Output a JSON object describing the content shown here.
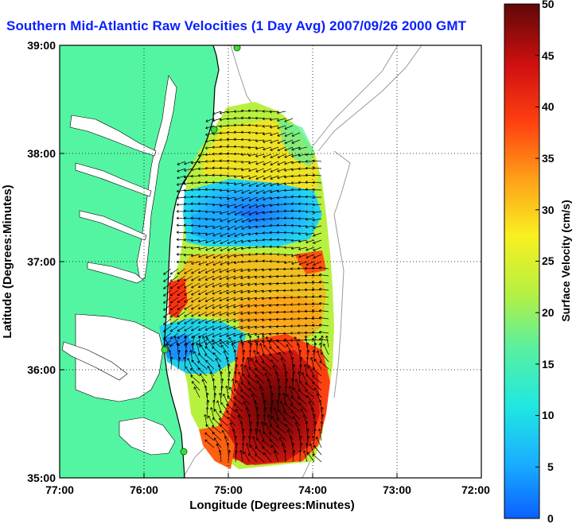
{
  "title": "Southern Mid-Atlantic Raw Velocities (1 Day Avg) 2007/09/26 2000 GMT",
  "map": {
    "xlabel": "Longitude (Degrees:Minutes)",
    "ylabel": "Latitude (Degrees:Minutes)",
    "x_ticks": [
      "77:00",
      "76:00",
      "75:00",
      "74:00",
      "73:00",
      "72:00"
    ],
    "y_ticks": [
      "39:00",
      "38:00",
      "37:00",
      "36:00",
      "35:00"
    ],
    "land_color": "#54f5a2",
    "water_color": "#ffffff"
  },
  "colorbar": {
    "label": "Surface Velocity (cm/s)",
    "ticks": [
      "50",
      "45",
      "40",
      "35",
      "30",
      "25",
      "20",
      "15",
      "10",
      "5",
      "0"
    ],
    "range": [
      0,
      50
    ],
    "stops": [
      "#0a60ff",
      "#1ab0ff",
      "#20e8e0",
      "#58f0a0",
      "#b8f040",
      "#f8f020",
      "#ffa018",
      "#ff4010",
      "#d01010",
      "#600808"
    ]
  },
  "chart_data": {
    "type": "heatmap",
    "title": "Southern Mid-Atlantic Raw Velocities (1 Day Avg) 2007/09/26 2000 GMT",
    "xlabel": "Longitude (Degrees:Minutes)",
    "ylabel": "Latitude (Degrees:Minutes)",
    "xlim": [
      "77:00 W",
      "72:00 W"
    ],
    "ylim": [
      "35:00 N",
      "39:00 N"
    ],
    "colorbar_label": "Surface Velocity (cm/s)",
    "colorbar_range": [
      0,
      50
    ],
    "grid": true
  }
}
